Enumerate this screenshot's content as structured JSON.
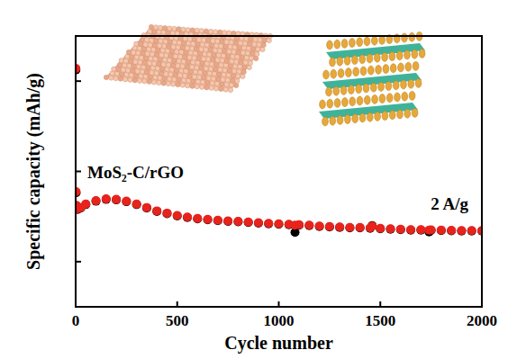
{
  "chart_data": {
    "type": "scatter",
    "x_label": "Cycle number",
    "y_label": "Specific capacity (mAh/g)",
    "annotations": [
      {
        "text": "MoS₂-C/rGO"
      },
      {
        "text": "2 A/g"
      }
    ],
    "x": [
      1,
      2,
      3,
      10,
      25,
      50,
      100,
      150,
      200,
      250,
      300,
      350,
      400,
      450,
      500,
      550,
      600,
      650,
      700,
      750,
      800,
      850,
      900,
      950,
      1000,
      1050,
      1080,
      1100,
      1150,
      1200,
      1250,
      1300,
      1350,
      1400,
      1450,
      1460,
      1500,
      1550,
      1600,
      1650,
      1700,
      1740,
      1750,
      1800,
      1850,
      1900,
      1950,
      2000
    ],
    "series": [
      {
        "color": "#000000",
        "marker": "circle",
        "values": [
          1050,
          505,
          448,
          432,
          438,
          453,
          468,
          476,
          474,
          466,
          453,
          438,
          423,
          413,
          403,
          396,
          390,
          386,
          382,
          379,
          377,
          374,
          371,
          368,
          366,
          364,
          330,
          362,
          360,
          356,
          354,
          352,
          350,
          350,
          348,
          360,
          346,
          344,
          342,
          340,
          340,
          332,
          339,
          338,
          337,
          336,
          336,
          336
        ]
      },
      {
        "color": "#e8231c",
        "marker": "circle",
        "values": [
          1056,
          510,
          450,
          435,
          440,
          455,
          470,
          478,
          476,
          468,
          455,
          440,
          425,
          415,
          405,
          398,
          392,
          388,
          384,
          381,
          379,
          376,
          373,
          370,
          368,
          366,
          362,
          364,
          362,
          358,
          356,
          354,
          352,
          352,
          350,
          358,
          348,
          346,
          344,
          342,
          342,
          340,
          341,
          340,
          339,
          338,
          338,
          338
        ]
      }
    ],
    "xlim": [
      0,
      2000
    ],
    "xticks": [
      0,
      500,
      1000,
      1500,
      2000
    ],
    "ylim": [
      0,
      1200
    ],
    "yticks": [
      200,
      600,
      1000
    ],
    "tick_labels": "x",
    "grid": false
  }
}
